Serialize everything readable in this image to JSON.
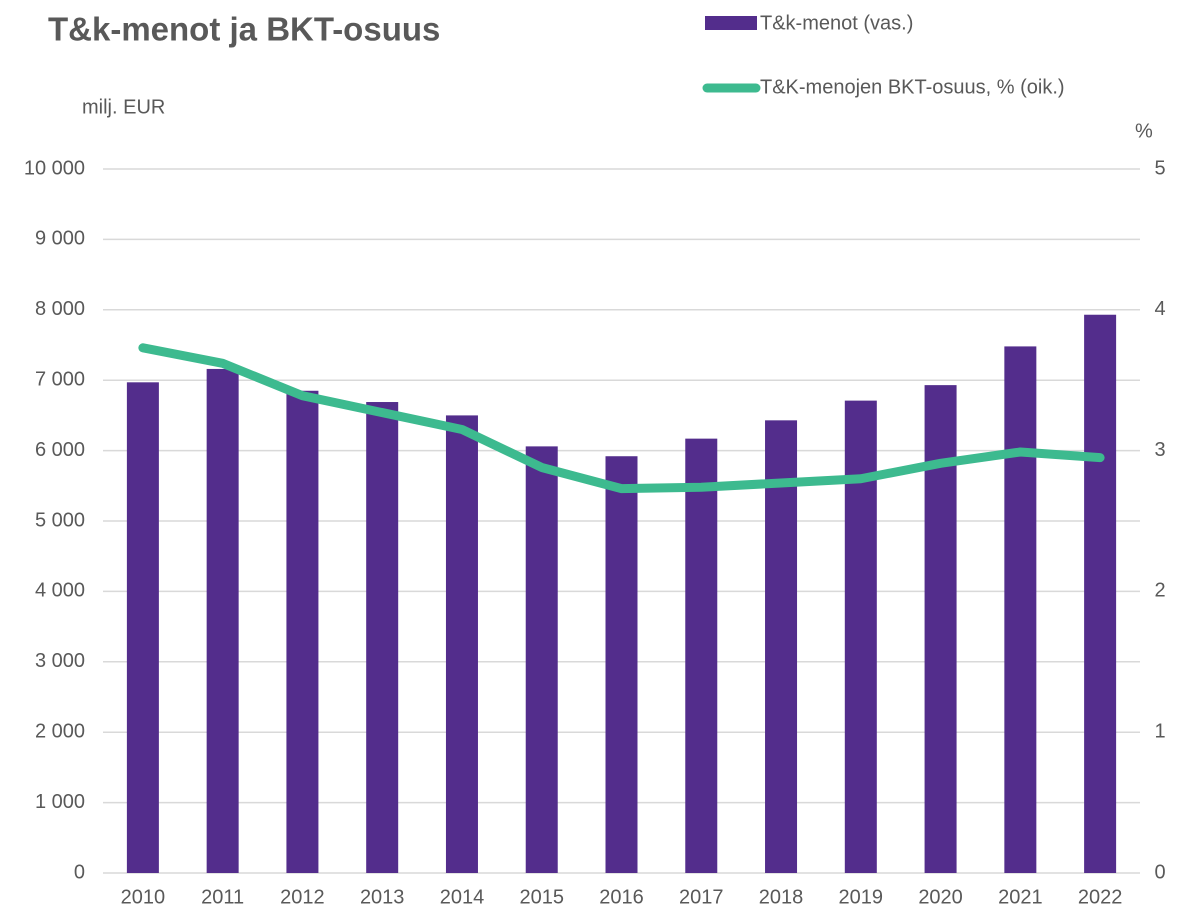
{
  "chart_data": {
    "type": "bar_line",
    "title": "T&k-menot ja BKT-osuus",
    "y_label": "milj. EUR",
    "y2_label": "%",
    "categories": [
      "2010",
      "2011",
      "2012",
      "2013",
      "2014",
      "2015",
      "2016",
      "2017",
      "2018",
      "2019",
      "2020",
      "2021",
      "2022"
    ],
    "series": [
      {
        "name": "T&k-menot (vas.)",
        "type": "bar",
        "color": "#532d8c",
        "values": [
          6970,
          7160,
          6850,
          6690,
          6500,
          6060,
          5920,
          6170,
          6430,
          6710,
          6930,
          7480,
          7930
        ]
      },
      {
        "name": "T&K-menojen BKT-osuus, % (oik.)",
        "type": "line",
        "axis": "y2",
        "color": "#3dba8f",
        "values": [
          3.73,
          3.62,
          3.39,
          3.27,
          3.15,
          2.88,
          2.73,
          2.74,
          2.77,
          2.8,
          2.91,
          2.99,
          2.95
        ]
      }
    ],
    "ylim": [
      0,
      10000
    ],
    "yticks": [
      0,
      {
        "value": 1000,
        "label": "1 000"
      },
      {
        "value": 2000,
        "label": "2 000"
      },
      {
        "value": 3000,
        "label": "3 000"
      },
      {
        "value": 4000,
        "label": "4 000"
      },
      {
        "value": 5000,
        "label": "5 000"
      },
      {
        "value": 6000,
        "label": "6 000"
      },
      {
        "value": 7000,
        "label": "7 000"
      },
      {
        "value": 8000,
        "label": "8 000"
      },
      {
        "value": 9000,
        "label": "9 000"
      },
      {
        "value": 10000,
        "label": "10 000"
      }
    ],
    "y2lim": [
      0,
      5
    ],
    "y2ticks": [
      0,
      1,
      2,
      3,
      4,
      5
    ],
    "grid": true,
    "legend": "top-right"
  }
}
